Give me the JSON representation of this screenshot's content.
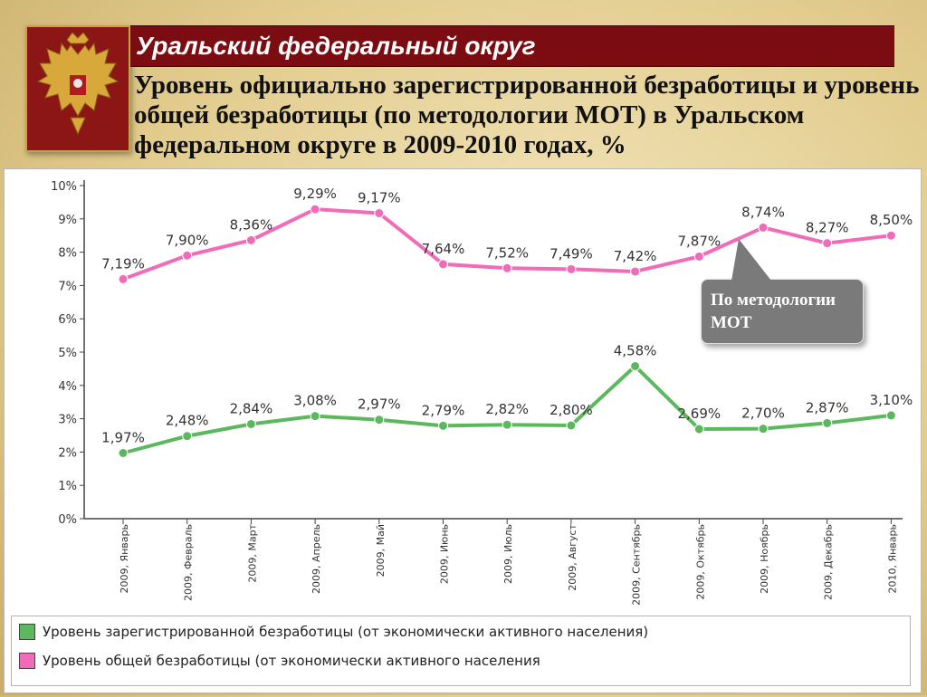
{
  "header": {
    "region_title": "Уральский федеральный округ",
    "subtitle": "Уровень официально зарегистрированной безработицы и уровень общей безработицы (по методологии МОТ) в Уральском федеральном округе в 2009-2010 годах, %"
  },
  "emblem": {
    "icon": "russian-coat-of-arms-icon"
  },
  "callout": {
    "text": "По методологии МОТ"
  },
  "colors": {
    "pink": "#f06bb8",
    "green": "#5cb85c",
    "banner": "#7a0c12"
  },
  "chart_data": {
    "type": "line",
    "categories": [
      "2009, Январь",
      "2009, Февраль",
      "2009, Март",
      "2009, Апрель",
      "2009, Май",
      "2009, Июнь",
      "2009, Июль",
      "2009, Август",
      "2009, Сентябрь",
      "2009, Октябрь",
      "2009, Ноябрь",
      "2009, Декабрь",
      "2010, Январь"
    ],
    "yticks": [
      "0%",
      "1%",
      "2%",
      "3%",
      "4%",
      "5%",
      "6%",
      "7%",
      "8%",
      "9%",
      "10%"
    ],
    "ylim": [
      0,
      10
    ],
    "grid": false,
    "legend_position": "bottom",
    "series": [
      {
        "name": "Уровень общей безработицы (от экономически активного населения",
        "color": "#f06bb8",
        "values": [
          7.19,
          7.9,
          8.36,
          9.29,
          9.17,
          7.64,
          7.52,
          7.49,
          7.42,
          7.87,
          8.74,
          8.27,
          8.5
        ],
        "labels": [
          "7,19%",
          "7,90%",
          "8,36%",
          "9,29%",
          "9,17%",
          "7,64%",
          "7,52%",
          "7,49%",
          "7,42%",
          "7,87%",
          "8,74%",
          "8,27%",
          "8,50%"
        ]
      },
      {
        "name": "Уровень зарегистрированной безработицы (от экономически активного населения)",
        "color": "#5cb85c",
        "values": [
          1.97,
          2.48,
          2.84,
          3.08,
          2.97,
          2.79,
          2.82,
          2.8,
          4.58,
          2.69,
          2.7,
          2.87,
          3.1
        ],
        "labels": [
          "1,97%",
          "2,48%",
          "2,84%",
          "3,08%",
          "2,97%",
          "2,79%",
          "2,82%",
          "2,80%",
          "4,58%",
          "2,69%",
          "2,70%",
          "2,87%",
          "3,10%"
        ]
      }
    ]
  }
}
